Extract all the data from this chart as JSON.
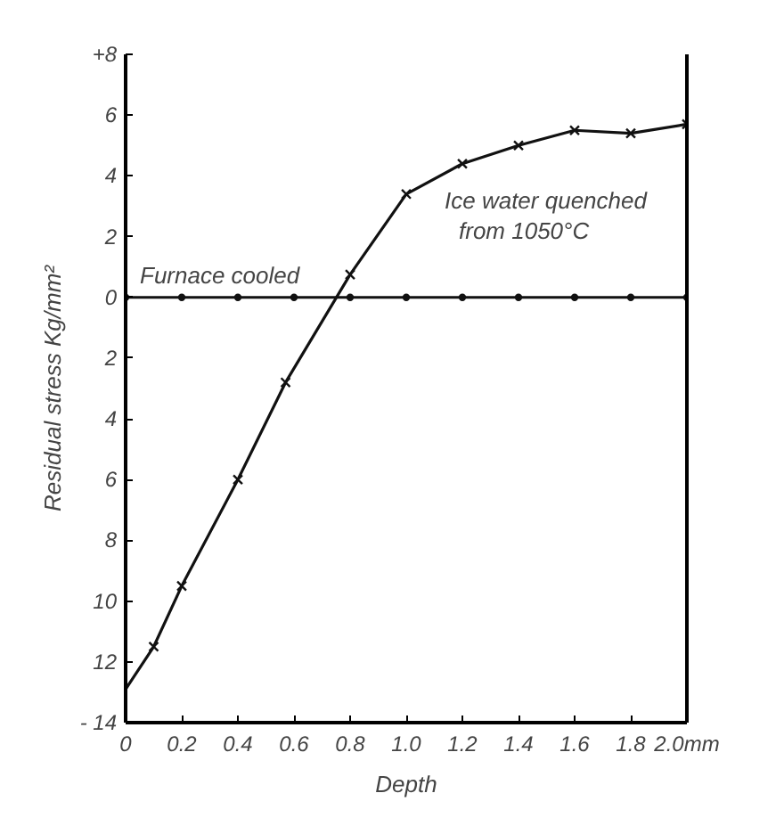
{
  "chart_data": {
    "type": "line",
    "xlabel": "Depth",
    "ylabel": "Residual stress Kg/mm²",
    "xlim": [
      0,
      2.0
    ],
    "ylim": [
      -14,
      8
    ],
    "xticks": [
      0,
      0.2,
      0.4,
      {
        "value": 0.6,
        "label": "0.6"
      },
      0.8,
      {
        "value": 1.0,
        "label": "1.0"
      },
      1.2,
      1.4,
      1.6,
      1.8,
      {
        "value": 2.0,
        "label": "2.0mm"
      }
    ],
    "yticks": [
      {
        "value": 8,
        "label": "+8"
      },
      6,
      4,
      2,
      0,
      {
        "value": -2,
        "label": "2"
      },
      {
        "value": -4,
        "label": "4"
      },
      {
        "value": -6,
        "label": "6"
      },
      {
        "value": -8,
        "label": "8"
      },
      {
        "value": -10,
        "label": "10"
      },
      {
        "value": -12,
        "label": "12"
      },
      {
        "value": -14,
        "label": "- 14"
      }
    ],
    "grid": false,
    "series": [
      {
        "color": "#111111",
        "marker": "none",
        "x": [
          0,
          0.1,
          0.2,
          0.4,
          0.57,
          0.8,
          1.0,
          1.2,
          1.4,
          1.6,
          1.8,
          2.0
        ],
        "values": [
          -12.9,
          -11.5,
          -9.5,
          -6.0,
          -2.8,
          0.75,
          3.4,
          4.4,
          5.0,
          5.5,
          5.4,
          5.7
        ]
      },
      {
        "name": "Ice water quenched from 1050°C",
        "type": "scatter",
        "color": "#111111",
        "marker": "cross",
        "x": [
          0.1,
          0.2,
          0.4,
          0.57,
          0.8,
          1.0,
          1.2,
          1.4,
          1.6,
          1.8,
          2.0
        ],
        "values": [
          -11.5,
          -9.5,
          -6.0,
          -2.8,
          0.75,
          3.4,
          4.4,
          5.0,
          5.5,
          5.4,
          5.7
        ]
      },
      {
        "name": "Furnace cooled",
        "color": "#111111",
        "marker": "circle",
        "x": [
          0,
          0.2,
          0.4,
          0.6,
          0.8,
          1.0,
          1.2,
          1.4,
          1.6,
          1.8,
          2.0
        ],
        "values": [
          0,
          0,
          0,
          0,
          0,
          0,
          0,
          0,
          0,
          0,
          0
        ]
      }
    ]
  }
}
